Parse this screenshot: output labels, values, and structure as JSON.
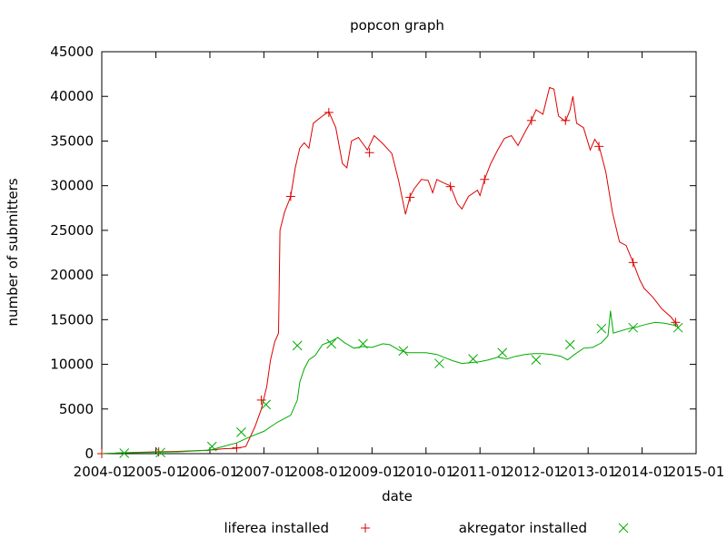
{
  "chart_data": {
    "type": "line",
    "title": "popcon graph",
    "xlabel": "date",
    "ylabel": "number of submitters",
    "x_ticks": [
      "2004-01",
      "2005-01",
      "2006-01",
      "2007-01",
      "2008-01",
      "2009-01",
      "2010-01",
      "2011-01",
      "2012-01",
      "2013-01",
      "2014-01",
      "2015-01"
    ],
    "y_ticks": [
      0,
      5000,
      10000,
      15000,
      20000,
      25000,
      30000,
      35000,
      40000,
      45000
    ],
    "xlim": [
      "2004-01-01",
      "2015-01-01"
    ],
    "ylim": [
      0,
      45000
    ],
    "grid": false,
    "legend_position": "bottom",
    "series": [
      {
        "name": "liferea installed",
        "color": "#dd0000",
        "marker": "+",
        "points": [
          [
            "2004-01-01",
            0
          ],
          [
            "2004-06-01",
            100
          ],
          [
            "2005-01-01",
            200
          ],
          [
            "2005-06-01",
            250
          ],
          [
            "2006-01-01",
            400
          ],
          [
            "2006-04-01",
            550
          ],
          [
            "2006-07-01",
            600
          ],
          [
            "2006-09-01",
            800
          ],
          [
            "2006-11-01",
            3000
          ],
          [
            "2006-12-15",
            5000
          ],
          [
            "2007-01-20",
            7500
          ],
          [
            "2007-02-15",
            10500
          ],
          [
            "2007-03-15",
            12500
          ],
          [
            "2007-04-10",
            13500
          ],
          [
            "2007-04-20",
            25000
          ],
          [
            "2007-05-20",
            27000
          ],
          [
            "2007-07-01",
            28800
          ],
          [
            "2007-08-01",
            32000
          ],
          [
            "2007-09-01",
            34200
          ],
          [
            "2007-10-01",
            34800
          ],
          [
            "2007-11-01",
            34200
          ],
          [
            "2007-12-01",
            37000
          ],
          [
            "2008-02-01",
            37800
          ],
          [
            "2008-03-15",
            38300
          ],
          [
            "2008-05-01",
            36500
          ],
          [
            "2008-06-15",
            32500
          ],
          [
            "2008-07-15",
            32000
          ],
          [
            "2008-08-15",
            35000
          ],
          [
            "2008-10-01",
            35400
          ],
          [
            "2008-12-01",
            34000
          ],
          [
            "2009-01-15",
            35600
          ],
          [
            "2009-03-15",
            34700
          ],
          [
            "2009-05-15",
            33600
          ],
          [
            "2009-07-01",
            30500
          ],
          [
            "2009-08-15",
            26800
          ],
          [
            "2009-09-15",
            28800
          ],
          [
            "2009-10-15",
            29700
          ],
          [
            "2009-12-01",
            30700
          ],
          [
            "2010-01-15",
            30600
          ],
          [
            "2010-02-15",
            29200
          ],
          [
            "2010-03-15",
            30700
          ],
          [
            "2010-05-01",
            30300
          ],
          [
            "2010-06-15",
            30000
          ],
          [
            "2010-08-01",
            28000
          ],
          [
            "2010-09-01",
            27400
          ],
          [
            "2010-10-15",
            28800
          ],
          [
            "2010-12-15",
            29500
          ],
          [
            "2011-01-01",
            28900
          ],
          [
            "2011-02-01",
            30700
          ],
          [
            "2011-03-15",
            32500
          ],
          [
            "2011-05-01",
            34000
          ],
          [
            "2011-06-15",
            35300
          ],
          [
            "2011-08-01",
            35600
          ],
          [
            "2011-09-15",
            34500
          ],
          [
            "2011-11-01",
            36000
          ],
          [
            "2011-12-15",
            37300
          ],
          [
            "2012-01-15",
            38500
          ],
          [
            "2012-03-01",
            38000
          ],
          [
            "2012-04-15",
            41000
          ],
          [
            "2012-05-15",
            40800
          ],
          [
            "2012-06-15",
            37800
          ],
          [
            "2012-08-01",
            37200
          ],
          [
            "2012-09-01",
            38500
          ],
          [
            "2012-09-20",
            40000
          ],
          [
            "2012-10-15",
            37000
          ],
          [
            "2012-12-01",
            36500
          ],
          [
            "2013-01-15",
            34000
          ],
          [
            "2013-02-15",
            35200
          ],
          [
            "2013-03-15",
            34500
          ],
          [
            "2013-05-01",
            31500
          ],
          [
            "2013-06-15",
            27000
          ],
          [
            "2013-08-01",
            23700
          ],
          [
            "2013-09-15",
            23300
          ],
          [
            "2013-11-01",
            21400
          ],
          [
            "2013-12-15",
            19500
          ],
          [
            "2014-01-15",
            18500
          ],
          [
            "2014-03-15",
            17500
          ],
          [
            "2014-05-15",
            16200
          ],
          [
            "2014-07-15",
            15300
          ],
          [
            "2014-09-01",
            14300
          ]
        ],
        "marker_points": [
          [
            "2004-01-01",
            0
          ],
          [
            "2005-01-20",
            200
          ],
          [
            "2006-07-01",
            650
          ],
          [
            "2006-12-15",
            6000
          ],
          [
            "2007-07-01",
            28800
          ],
          [
            "2008-03-15",
            38200
          ],
          [
            "2008-12-15",
            33700
          ],
          [
            "2009-09-15",
            28700
          ],
          [
            "2010-06-15",
            29900
          ],
          [
            "2011-02-01",
            30700
          ],
          [
            "2011-12-15",
            37300
          ],
          [
            "2012-08-01",
            37300
          ],
          [
            "2013-03-15",
            34400
          ],
          [
            "2013-11-01",
            21400
          ],
          [
            "2014-08-15",
            14700
          ]
        ]
      },
      {
        "name": "akregator installed",
        "color": "#00aa00",
        "marker": "x",
        "points": [
          [
            "2004-01-01",
            0
          ],
          [
            "2004-06-01",
            100
          ],
          [
            "2005-01-01",
            150
          ],
          [
            "2005-06-01",
            200
          ],
          [
            "2006-01-01",
            400
          ],
          [
            "2006-04-01",
            800
          ],
          [
            "2006-07-01",
            1200
          ],
          [
            "2006-10-01",
            1900
          ],
          [
            "2007-01-01",
            2500
          ],
          [
            "2007-04-01",
            3500
          ],
          [
            "2007-07-01",
            4300
          ],
          [
            "2007-08-15",
            6000
          ],
          [
            "2007-09-01",
            8000
          ],
          [
            "2007-10-01",
            9500
          ],
          [
            "2007-11-01",
            10500
          ],
          [
            "2007-12-15",
            11000
          ],
          [
            "2008-02-01",
            12200
          ],
          [
            "2008-04-01",
            12600
          ],
          [
            "2008-05-15",
            13000
          ],
          [
            "2008-07-01",
            12400
          ],
          [
            "2008-09-01",
            11800
          ],
          [
            "2008-11-01",
            12000
          ],
          [
            "2009-01-01",
            11900
          ],
          [
            "2009-03-15",
            12300
          ],
          [
            "2009-05-01",
            12200
          ],
          [
            "2009-07-01",
            11600
          ],
          [
            "2009-09-01",
            11300
          ],
          [
            "2009-11-01",
            11300
          ],
          [
            "2010-01-01",
            11300
          ],
          [
            "2010-03-15",
            11100
          ],
          [
            "2010-05-01",
            10800
          ],
          [
            "2010-07-01",
            10400
          ],
          [
            "2010-09-01",
            10100
          ],
          [
            "2010-11-01",
            10200
          ],
          [
            "2011-01-01",
            10300
          ],
          [
            "2011-03-01",
            10500
          ],
          [
            "2011-05-01",
            10800
          ],
          [
            "2011-07-01",
            10600
          ],
          [
            "2011-09-01",
            10900
          ],
          [
            "2011-11-01",
            11100
          ],
          [
            "2012-01-01",
            11200
          ],
          [
            "2012-03-01",
            11200
          ],
          [
            "2012-05-01",
            11100
          ],
          [
            "2012-07-01",
            10900
          ],
          [
            "2012-08-15",
            10500
          ],
          [
            "2012-10-01",
            11100
          ],
          [
            "2012-12-01",
            11800
          ],
          [
            "2013-02-01",
            11900
          ],
          [
            "2013-04-01",
            12400
          ],
          [
            "2013-05-15",
            13200
          ],
          [
            "2013-06-01",
            16000
          ],
          [
            "2013-06-20",
            13500
          ],
          [
            "2013-08-01",
            13700
          ],
          [
            "2013-10-01",
            14000
          ],
          [
            "2013-12-01",
            14200
          ],
          [
            "2014-02-01",
            14500
          ],
          [
            "2014-04-01",
            14700
          ],
          [
            "2014-06-01",
            14600
          ],
          [
            "2014-08-01",
            14400
          ],
          [
            "2014-09-01",
            14200
          ]
        ],
        "marker_points": [
          [
            "2004-06-01",
            50
          ],
          [
            "2005-02-01",
            120
          ],
          [
            "2006-01-15",
            800
          ],
          [
            "2006-08-01",
            2400
          ],
          [
            "2007-01-15",
            5500
          ],
          [
            "2007-08-15",
            12100
          ],
          [
            "2008-04-01",
            12300
          ],
          [
            "2008-11-01",
            12300
          ],
          [
            "2009-08-01",
            11500
          ],
          [
            "2010-04-01",
            10100
          ],
          [
            "2010-11-15",
            10600
          ],
          [
            "2011-06-01",
            11300
          ],
          [
            "2012-01-15",
            10500
          ],
          [
            "2012-09-01",
            12200
          ],
          [
            "2013-04-01",
            14000
          ],
          [
            "2013-11-01",
            14100
          ],
          [
            "2014-09-01",
            14100
          ]
        ]
      }
    ]
  }
}
